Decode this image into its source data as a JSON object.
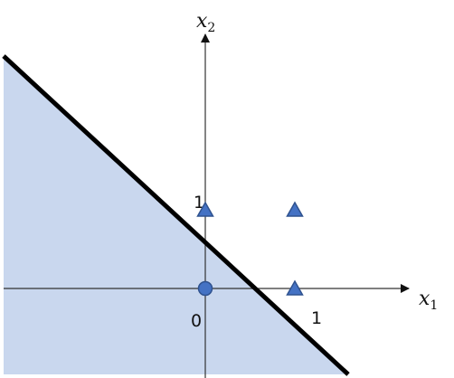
{
  "diagram": {
    "x_axis": {
      "name": "x",
      "subscript": "1"
    },
    "y_axis": {
      "name": "x",
      "subscript": "2"
    },
    "origin_label": "0",
    "x_tick_label": "1",
    "y_tick_label": "1",
    "region_fill": "#c9d7ee",
    "boundary_color": "#000000",
    "marker_fill": "#4472c4",
    "marker_stroke": "#2f528f",
    "points": [
      {
        "x": 0,
        "y": 0,
        "marker": "circle"
      },
      {
        "x": 0,
        "y": 1,
        "marker": "triangle"
      },
      {
        "x": 1,
        "y": 0,
        "marker": "triangle"
      },
      {
        "x": 1,
        "y": 1,
        "marker": "triangle"
      }
    ]
  }
}
